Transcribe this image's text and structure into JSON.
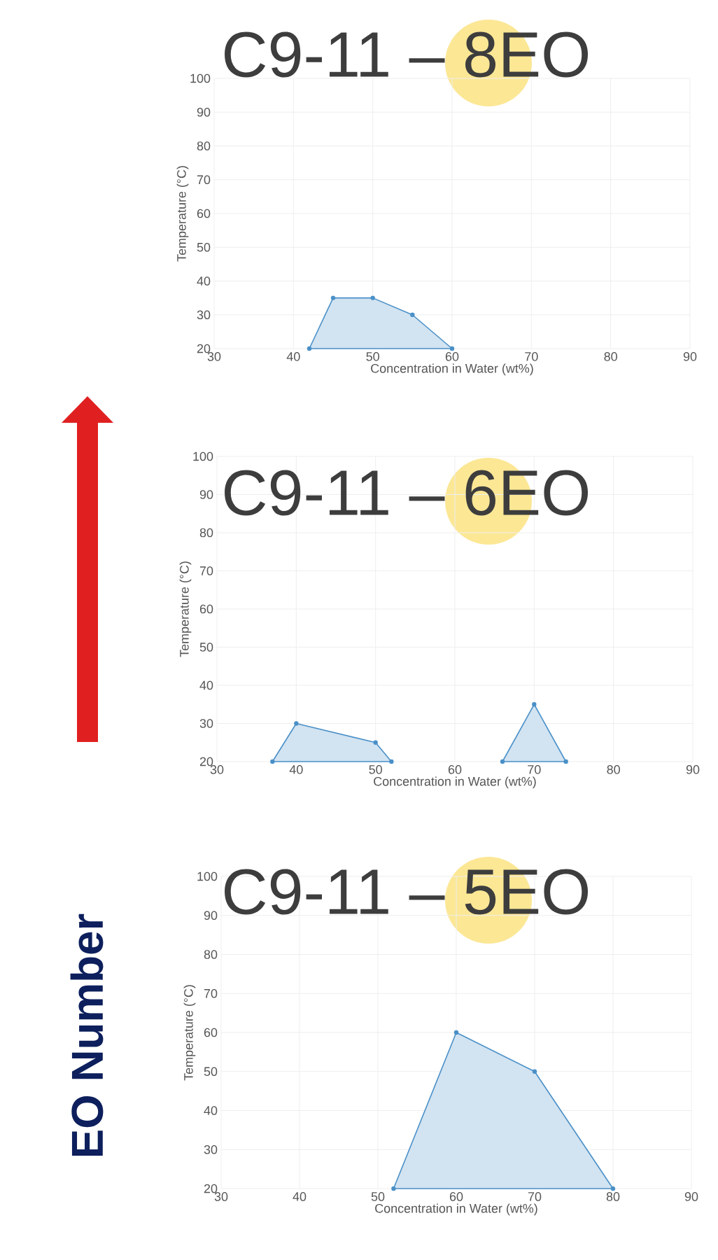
{
  "chart_data": [
    {
      "type": "area",
      "title": "C9-11 – 8EO",
      "xlabel": "Concentration in Water (wt%)",
      "ylabel": "Temperature (°C)",
      "xlim": [
        30,
        90
      ],
      "ylim": [
        20,
        100
      ],
      "xticks": [
        30,
        40,
        50,
        60,
        70,
        80,
        90
      ],
      "yticks": [
        20,
        30,
        40,
        50,
        60,
        70,
        80,
        90,
        100
      ],
      "grid": true,
      "marker": "circle",
      "series": [
        {
          "color": "#4a90c8",
          "x": [
            42,
            45,
            50,
            55,
            60
          ],
          "values": [
            20,
            35,
            35,
            30,
            20
          ]
        }
      ]
    },
    {
      "type": "area",
      "title": "C9-11 – 6EO",
      "xlabel": "Concentration in Water (wt%)",
      "ylabel": "Temperature (°C)",
      "xlim": [
        30,
        90
      ],
      "ylim": [
        20,
        100
      ],
      "xticks": [
        30,
        40,
        50,
        60,
        70,
        80,
        90
      ],
      "yticks": [
        20,
        30,
        40,
        50,
        60,
        70,
        80,
        90,
        100
      ],
      "grid": true,
      "marker": "circle",
      "series": [
        {
          "color": "#4a90c8",
          "x": [
            37,
            40,
            50,
            52
          ],
          "values": [
            20,
            30,
            25,
            20
          ]
        },
        {
          "color": "#4a90c8",
          "x": [
            66,
            70,
            74
          ],
          "values": [
            20,
            35,
            20
          ]
        }
      ]
    },
    {
      "type": "area",
      "title": "C9-11 – 5EO",
      "xlabel": "Concentration in Water (wt%)",
      "ylabel": "Temperature (°C)",
      "xlim": [
        30,
        90
      ],
      "ylim": [
        20,
        100
      ],
      "xticks": [
        30,
        40,
        50,
        60,
        70,
        80,
        90
      ],
      "yticks": [
        20,
        30,
        40,
        50,
        60,
        70,
        80,
        90,
        100
      ],
      "grid": true,
      "marker": "circle",
      "annotations": [
        "EO Number"
      ],
      "series": [
        {
          "color": "#4a90c8",
          "x": [
            52,
            60,
            70,
            80
          ],
          "values": [
            20,
            60,
            50,
            20
          ]
        }
      ]
    }
  ]
}
